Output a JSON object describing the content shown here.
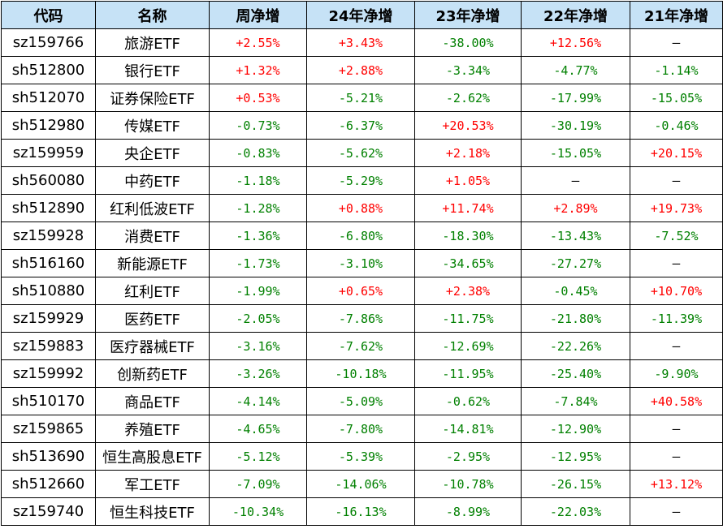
{
  "colors": {
    "header_bg": "#c6e2f6",
    "positive": "#ff0000",
    "negative": "#008000"
  },
  "headers": [
    "代码",
    "名称",
    "周净增",
    "24年净增",
    "23年净增",
    "22年净增",
    "21年净增"
  ],
  "rows": [
    {
      "code": "sz159766",
      "name": "旅游ETF",
      "values": [
        "+2.55%",
        "+3.43%",
        "-38.00%",
        "+12.56%",
        "—"
      ]
    },
    {
      "code": "sh512800",
      "name": "银行ETF",
      "values": [
        "+1.32%",
        "+2.88%",
        "-3.34%",
        "-4.77%",
        "-1.14%"
      ]
    },
    {
      "code": "sh512070",
      "name": "证券保险ETF",
      "values": [
        "+0.53%",
        "-5.21%",
        "-2.62%",
        "-17.99%",
        "-15.05%"
      ]
    },
    {
      "code": "sh512980",
      "name": "传媒ETF",
      "values": [
        "-0.73%",
        "-6.37%",
        "+20.53%",
        "-30.19%",
        "-0.46%"
      ]
    },
    {
      "code": "sz159959",
      "name": "央企ETF",
      "values": [
        "-0.83%",
        "-5.62%",
        "+2.18%",
        "-15.05%",
        "+20.15%"
      ]
    },
    {
      "code": "sh560080",
      "name": "中药ETF",
      "values": [
        "-1.18%",
        "-5.29%",
        "+1.05%",
        "—",
        "—"
      ]
    },
    {
      "code": "sh512890",
      "name": "红利低波ETF",
      "values": [
        "-1.28%",
        "+0.88%",
        "+11.74%",
        "+2.89%",
        "+19.73%"
      ]
    },
    {
      "code": "sz159928",
      "name": "消费ETF",
      "values": [
        "-1.36%",
        "-6.80%",
        "-18.30%",
        "-13.43%",
        "-7.52%"
      ]
    },
    {
      "code": "sh516160",
      "name": "新能源ETF",
      "values": [
        "-1.73%",
        "-3.10%",
        "-34.65%",
        "-27.27%",
        "—"
      ]
    },
    {
      "code": "sh510880",
      "name": "红利ETF",
      "values": [
        "-1.99%",
        "+0.65%",
        "+2.38%",
        "-0.45%",
        "+10.70%"
      ]
    },
    {
      "code": "sz159929",
      "name": "医药ETF",
      "values": [
        "-2.05%",
        "-7.86%",
        "-11.75%",
        "-21.80%",
        "-11.39%"
      ]
    },
    {
      "code": "sz159883",
      "name": "医疗器械ETF",
      "values": [
        "-3.16%",
        "-7.62%",
        "-12.69%",
        "-22.26%",
        "—"
      ]
    },
    {
      "code": "sz159992",
      "name": "创新药ETF",
      "values": [
        "-3.26%",
        "-10.18%",
        "-11.95%",
        "-25.40%",
        "-9.90%"
      ]
    },
    {
      "code": "sh510170",
      "name": "商品ETF",
      "values": [
        "-4.14%",
        "-5.09%",
        "-0.62%",
        "-7.84%",
        "+40.58%"
      ]
    },
    {
      "code": "sz159865",
      "name": "养殖ETF",
      "values": [
        "-4.65%",
        "-7.80%",
        "-14.81%",
        "-12.90%",
        "—"
      ]
    },
    {
      "code": "sh513690",
      "name": "恒生高股息ETF",
      "values": [
        "-5.12%",
        "-5.39%",
        "-2.95%",
        "-12.95%",
        "—"
      ]
    },
    {
      "code": "sh512660",
      "name": "军工ETF",
      "values": [
        "-7.09%",
        "-14.06%",
        "-10.78%",
        "-26.15%",
        "+13.12%"
      ]
    },
    {
      "code": "sz159740",
      "name": "恒生科技ETF",
      "values": [
        "-10.34%",
        "-16.13%",
        "-8.99%",
        "-22.03%",
        "—"
      ]
    }
  ]
}
